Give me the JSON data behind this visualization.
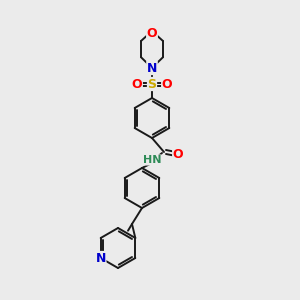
{
  "bg_color": "#ebebeb",
  "bond_color": "#1a1a1a",
  "atom_colors": {
    "O": "#ff0000",
    "N": "#0000cc",
    "S": "#ccaa00",
    "HN": "#2e8b57",
    "C": "#1a1a1a"
  },
  "figsize": [
    3.0,
    3.0
  ],
  "dpi": 100,
  "lw": 1.4,
  "ring_r": 20
}
